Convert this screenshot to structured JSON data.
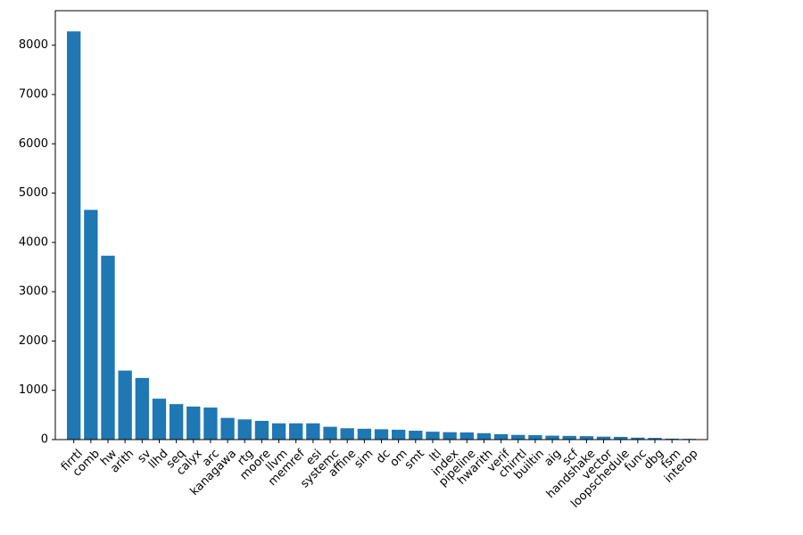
{
  "chart_data": {
    "type": "bar",
    "title": "",
    "xlabel": "",
    "ylabel": "",
    "ylim": [
      0,
      8700
    ],
    "yticks": [
      0,
      1000,
      2000,
      3000,
      4000,
      5000,
      6000,
      7000,
      8000
    ],
    "grid": false,
    "legend": "none",
    "bar_color": "#1f77b4",
    "categories": [
      "firrtl",
      "comb",
      "hw",
      "arith",
      "sv",
      "llhd",
      "seq",
      "calyx",
      "arc",
      "kanagawa",
      "rtg",
      "moore",
      "llvm",
      "memref",
      "esi",
      "systemc",
      "affine",
      "sim",
      "dc",
      "om",
      "smt",
      "ltl",
      "index",
      "pipeline",
      "hwarith",
      "verif",
      "chirrtl",
      "builtin",
      "aig",
      "scf",
      "handshake",
      "vector",
      "loopschedule",
      "func",
      "dbg",
      "fsm",
      "interop"
    ],
    "values": [
      8280,
      4660,
      3730,
      1400,
      1250,
      830,
      720,
      670,
      650,
      440,
      410,
      380,
      330,
      330,
      330,
      260,
      230,
      220,
      210,
      200,
      180,
      160,
      150,
      145,
      130,
      110,
      95,
      90,
      80,
      75,
      70,
      60,
      55,
      40,
      35,
      20,
      15
    ]
  }
}
